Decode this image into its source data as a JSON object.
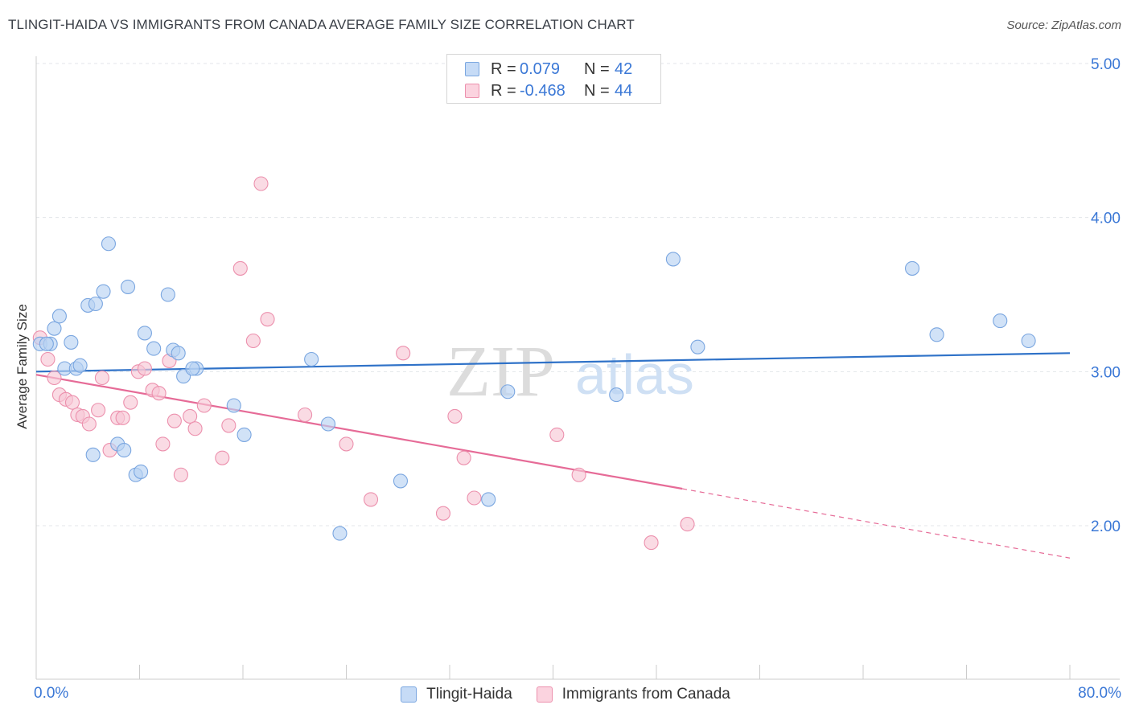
{
  "title": "TLINGIT-HAIDA VS IMMIGRANTS FROM CANADA AVERAGE FAMILY SIZE CORRELATION CHART",
  "source": "Source: ZipAtlas.com",
  "watermark": {
    "zip": "ZIP",
    "atlas": "atlas"
  },
  "colors": {
    "blue_fill": "#b9d2f3",
    "blue_stroke": "#7aa6e0",
    "blue_line": "#2f72c8",
    "pink_fill": "#f8c7d6",
    "pink_stroke": "#ec90ad",
    "pink_line": "#e66b97",
    "tick_label": "#3b78d6",
    "grid": "#e3e6ea"
  },
  "legend": {
    "rows": [
      {
        "r_label": "R =",
        "r_value": "0.079",
        "n_label": "N =",
        "n_value": "42",
        "series": "blue"
      },
      {
        "r_label": "R =",
        "r_value": "-0.468",
        "n_label": "N =",
        "n_value": "44",
        "series": "pink"
      }
    ]
  },
  "bottom_legend": [
    "Tlingit-Haida",
    "Immigrants from Canada"
  ],
  "chart_data": {
    "type": "scatter",
    "title": "TLINGIT-HAIDA VS IMMIGRANTS FROM CANADA AVERAGE FAMILY SIZE CORRELATION CHART",
    "xlabel": "",
    "ylabel": "Average Family Size",
    "xlim": [
      0,
      80
    ],
    "ylim": [
      1.0,
      5.1
    ],
    "x_tick_labels": [
      "0.0%",
      "80.0%"
    ],
    "y_ticks": [
      2.0,
      3.0,
      4.0,
      5.0
    ],
    "y_tick_labels": [
      "2.00",
      "3.00",
      "4.00",
      "5.00"
    ],
    "grid": true,
    "legend_placement": "top-center",
    "series": [
      {
        "name": "Tlingit-Haida",
        "color": "blue",
        "trend": {
          "x": [
            0,
            80
          ],
          "y": [
            3.0,
            3.12
          ]
        },
        "points": [
          [
            0.3,
            3.18
          ],
          [
            1.1,
            3.18
          ],
          [
            1.4,
            3.28
          ],
          [
            1.8,
            3.36
          ],
          [
            2.2,
            3.02
          ],
          [
            2.7,
            3.19
          ],
          [
            3.1,
            3.02
          ],
          [
            3.4,
            3.04
          ],
          [
            4.0,
            3.43
          ],
          [
            4.4,
            2.46
          ],
          [
            4.6,
            3.44
          ],
          [
            5.2,
            3.52
          ],
          [
            5.6,
            3.83
          ],
          [
            6.3,
            2.53
          ],
          [
            6.8,
            2.49
          ],
          [
            7.1,
            3.55
          ],
          [
            7.7,
            2.33
          ],
          [
            8.1,
            2.35
          ],
          [
            8.4,
            3.25
          ],
          [
            9.1,
            3.15
          ],
          [
            10.2,
            3.5
          ],
          [
            10.6,
            3.14
          ],
          [
            11.0,
            3.12
          ],
          [
            11.4,
            2.97
          ],
          [
            12.4,
            3.02
          ],
          [
            12.1,
            3.02
          ],
          [
            15.3,
            2.78
          ],
          [
            16.1,
            2.59
          ],
          [
            21.3,
            3.08
          ],
          [
            22.6,
            2.66
          ],
          [
            23.5,
            1.95
          ],
          [
            28.2,
            2.29
          ],
          [
            35.0,
            2.17
          ],
          [
            36.5,
            2.87
          ],
          [
            44.9,
            2.85
          ],
          [
            49.3,
            3.73
          ],
          [
            51.2,
            3.16
          ],
          [
            67.8,
            3.67
          ],
          [
            69.7,
            3.24
          ],
          [
            74.6,
            3.33
          ],
          [
            76.8,
            3.2
          ],
          [
            0.8,
            3.18
          ]
        ]
      },
      {
        "name": "Immigrants from Canada",
        "color": "pink",
        "trend": {
          "x": [
            0,
            50
          ],
          "y": [
            2.98,
            2.24
          ]
        },
        "trend_dashed": {
          "x": [
            50,
            80
          ],
          "y": [
            2.24,
            1.79
          ]
        },
        "points": [
          [
            0.3,
            3.22
          ],
          [
            0.9,
            3.08
          ],
          [
            1.4,
            2.96
          ],
          [
            1.8,
            2.85
          ],
          [
            2.3,
            2.82
          ],
          [
            2.8,
            2.8
          ],
          [
            3.2,
            2.72
          ],
          [
            3.6,
            2.71
          ],
          [
            4.1,
            2.66
          ],
          [
            4.8,
            2.75
          ],
          [
            5.1,
            2.96
          ],
          [
            5.7,
            2.49
          ],
          [
            6.3,
            2.7
          ],
          [
            6.7,
            2.7
          ],
          [
            7.3,
            2.8
          ],
          [
            7.9,
            3.0
          ],
          [
            8.4,
            3.02
          ],
          [
            9.0,
            2.88
          ],
          [
            9.5,
            2.86
          ],
          [
            9.8,
            2.53
          ],
          [
            10.3,
            3.07
          ],
          [
            10.7,
            2.68
          ],
          [
            11.2,
            2.33
          ],
          [
            11.9,
            2.71
          ],
          [
            12.3,
            2.63
          ],
          [
            13.0,
            2.78
          ],
          [
            14.4,
            2.44
          ],
          [
            14.9,
            2.65
          ],
          [
            15.8,
            3.67
          ],
          [
            16.8,
            3.2
          ],
          [
            17.4,
            4.22
          ],
          [
            17.9,
            3.34
          ],
          [
            20.8,
            2.72
          ],
          [
            24.0,
            2.53
          ],
          [
            25.9,
            2.17
          ],
          [
            28.4,
            3.12
          ],
          [
            31.5,
            2.08
          ],
          [
            32.4,
            2.71
          ],
          [
            33.1,
            2.44
          ],
          [
            33.9,
            2.18
          ],
          [
            40.3,
            2.59
          ],
          [
            42.0,
            2.33
          ],
          [
            47.6,
            1.89
          ],
          [
            50.4,
            2.01
          ]
        ]
      }
    ]
  }
}
